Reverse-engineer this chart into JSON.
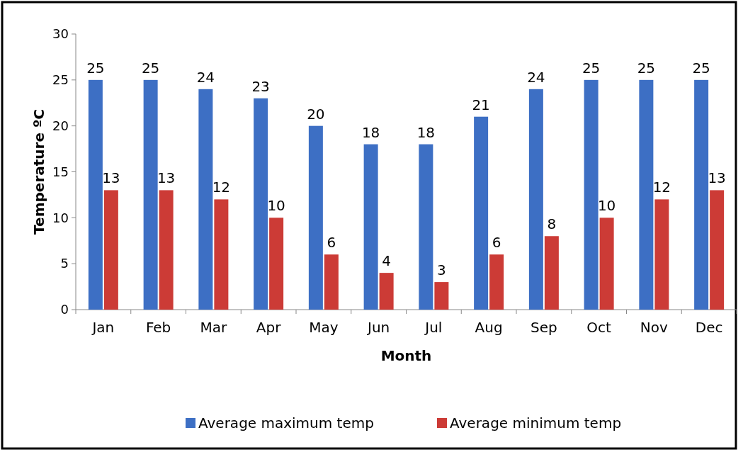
{
  "chart_data": {
    "type": "bar",
    "xlabel": "Month",
    "ylabel": "Temperature ºC",
    "categories": [
      "Jan",
      "Feb",
      "Mar",
      "Apr",
      "May",
      "Jun",
      "Jul",
      "Aug",
      "Sep",
      "Oct",
      "Nov",
      "Dec"
    ],
    "series": [
      {
        "name": "Average maximum temp",
        "color": "#3d6fc4",
        "values": [
          25,
          25,
          24,
          23,
          20,
          18,
          18,
          21,
          24,
          25,
          25,
          25
        ]
      },
      {
        "name": "Average minimum temp",
        "color": "#cc3b36",
        "values": [
          13,
          13,
          12,
          10,
          6,
          4,
          3,
          6,
          8,
          10,
          12,
          13
        ]
      }
    ],
    "ylim": [
      0,
      30
    ],
    "yticks": [
      0,
      5,
      10,
      15,
      20,
      25,
      30
    ],
    "grid": false,
    "legend": "bottom",
    "data_labels": true
  }
}
